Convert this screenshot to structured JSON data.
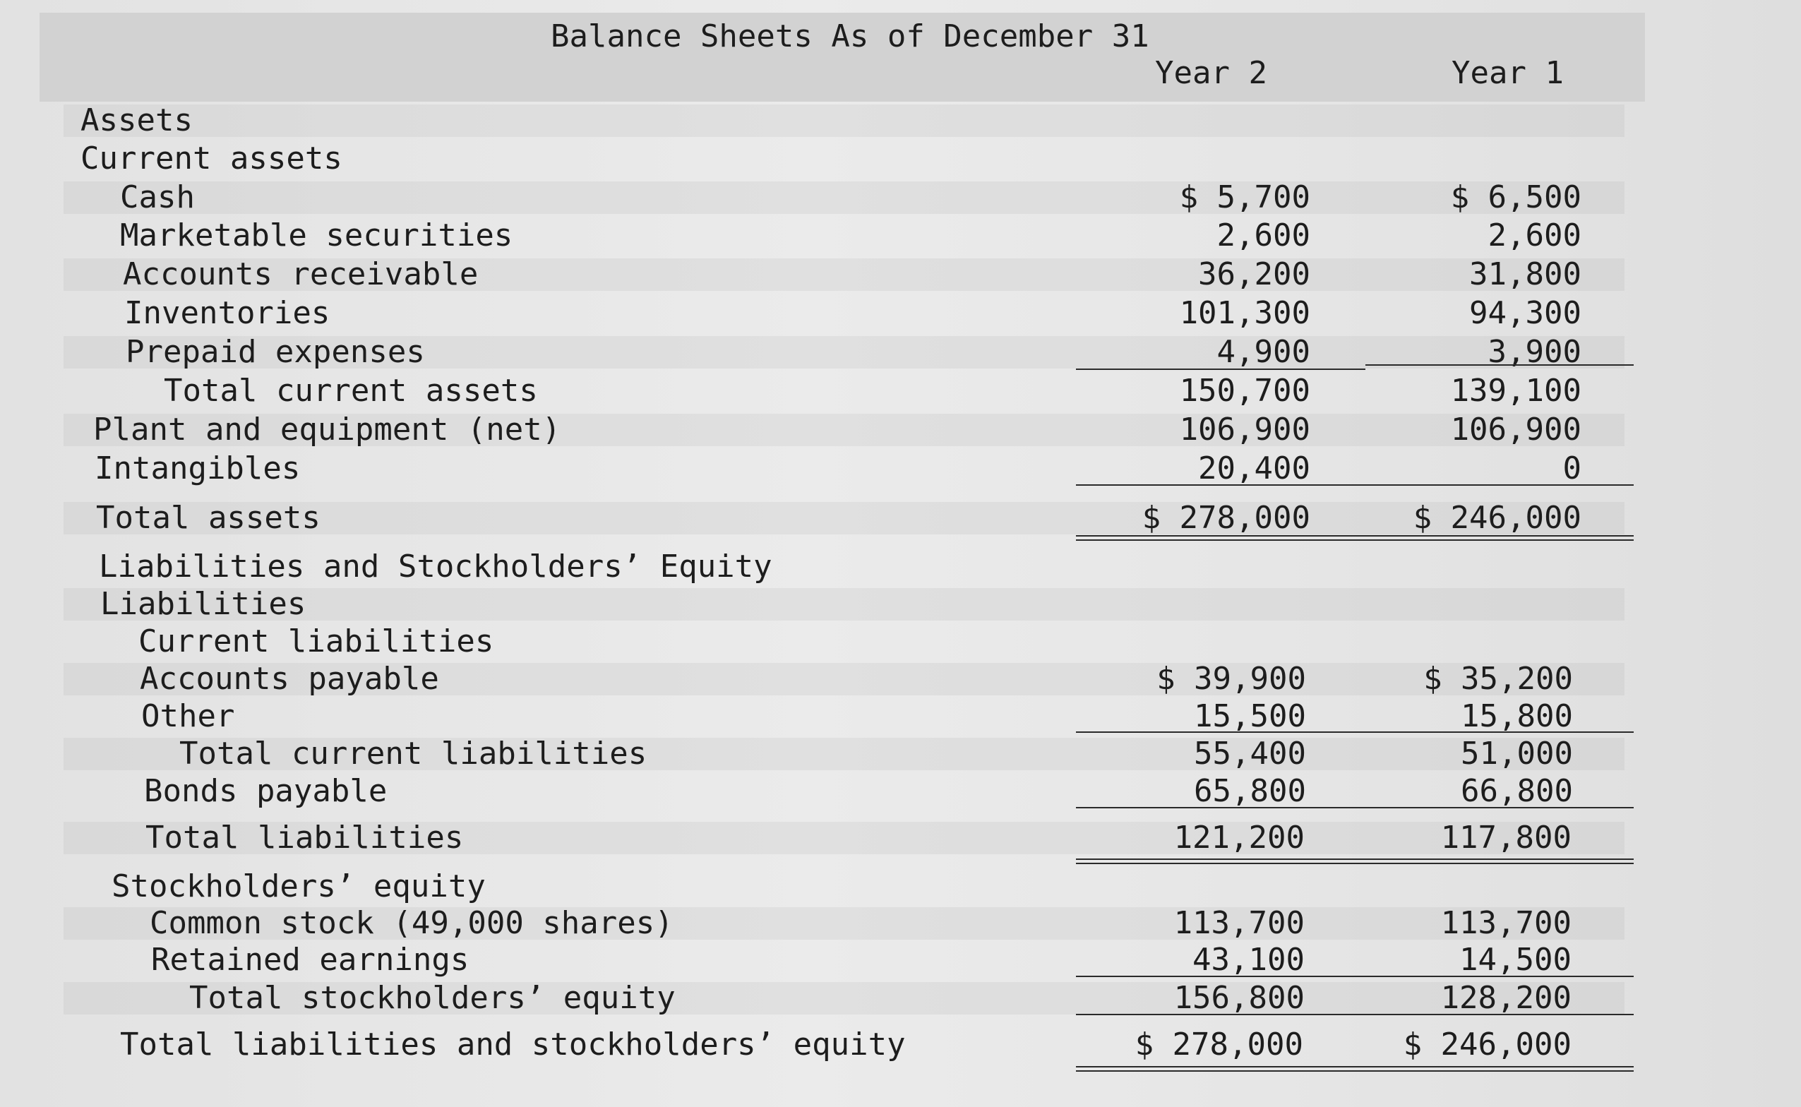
{
  "header": {
    "title": "Balance Sheets As of December 31",
    "col_year2": "Year 2",
    "col_year1": "Year 1"
  },
  "rows": [
    {
      "label": "Assets",
      "y2": "",
      "y1": ""
    },
    {
      "label": "Current assets",
      "y2": "",
      "y1": ""
    },
    {
      "label": "Cash",
      "y2": "$ 5,700",
      "y1": "$ 6,500"
    },
    {
      "label": "Marketable securities",
      "y2": "2,600",
      "y1": "2,600"
    },
    {
      "label": "Accounts receivable",
      "y2": "36,200",
      "y1": "31,800"
    },
    {
      "label": "Inventories",
      "y2": "101,300",
      "y1": "94,300"
    },
    {
      "label": "Prepaid expenses",
      "y2": "4,900",
      "y1": "3,900"
    },
    {
      "label": "Total current assets",
      "y2": "150,700",
      "y1": "139,100"
    },
    {
      "label": "Plant and equipment (net)",
      "y2": "106,900",
      "y1": "106,900"
    },
    {
      "label": "Intangibles",
      "y2": "20,400",
      "y1": "0"
    },
    {
      "label": "Total assets",
      "y2": "$ 278,000",
      "y1": "$ 246,000"
    },
    {
      "label": "Liabilities and Stockholders’ Equity",
      "y2": "",
      "y1": ""
    },
    {
      "label": "Liabilities",
      "y2": "",
      "y1": ""
    },
    {
      "label": "Current liabilities",
      "y2": "",
      "y1": ""
    },
    {
      "label": "Accounts payable",
      "y2": "$ 39,900",
      "y1": "$ 35,200"
    },
    {
      "label": "Other",
      "y2": "15,500",
      "y1": "15,800"
    },
    {
      "label": "Total current liabilities",
      "y2": "55,400",
      "y1": "51,000"
    },
    {
      "label": "Bonds payable",
      "y2": "65,800",
      "y1": "66,800"
    },
    {
      "label": "Total liabilities",
      "y2": "121,200",
      "y1": "117,800"
    },
    {
      "label": "Stockholders’ equity",
      "y2": "",
      "y1": ""
    },
    {
      "label": "Common stock (49,000 shares)",
      "y2": "113,700",
      "y1": "113,700"
    },
    {
      "label": "Retained earnings",
      "y2": "43,100",
      "y1": "14,500"
    },
    {
      "label": "Total stockholders’ equity",
      "y2": "156,800",
      "y1": "128,200"
    },
    {
      "label": "Total liabilities and stockholders’ equity",
      "y2": "$ 278,000",
      "y1": "$ 246,000"
    }
  ]
}
